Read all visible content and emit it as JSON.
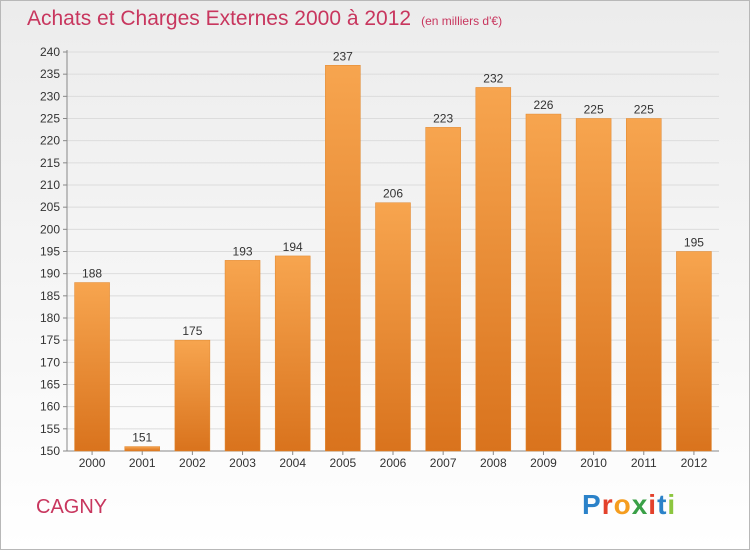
{
  "header": {
    "title": "Achats et Charges Externes 2000 à 2012",
    "subtitle": "(en milliers d'€)"
  },
  "footer": {
    "commune": "CAGNY",
    "brand": "Proxiti"
  },
  "colors": {
    "title": "#c8365e",
    "bar_top": "#f7a54f",
    "bar_bottom": "#d9731d",
    "brand_letters": [
      "#2b82c9",
      "#e3412b",
      "#f59d1f",
      "#3aa047",
      "#e3412b",
      "#2b82c9",
      "#8cc63f"
    ]
  },
  "chart_data": {
    "type": "bar",
    "categories": [
      "2000",
      "2001",
      "2002",
      "2003",
      "2004",
      "2005",
      "2006",
      "2007",
      "2008",
      "2009",
      "2010",
      "2011",
      "2012"
    ],
    "values": [
      188,
      151,
      175,
      193,
      194,
      237,
      206,
      223,
      232,
      226,
      225,
      225,
      195
    ],
    "ylim": [
      150,
      240
    ],
    "yticks": [
      150,
      155,
      160,
      165,
      170,
      175,
      180,
      185,
      190,
      195,
      200,
      205,
      210,
      215,
      220,
      225,
      230,
      235,
      240
    ],
    "grid": true,
    "data_labels": true
  }
}
